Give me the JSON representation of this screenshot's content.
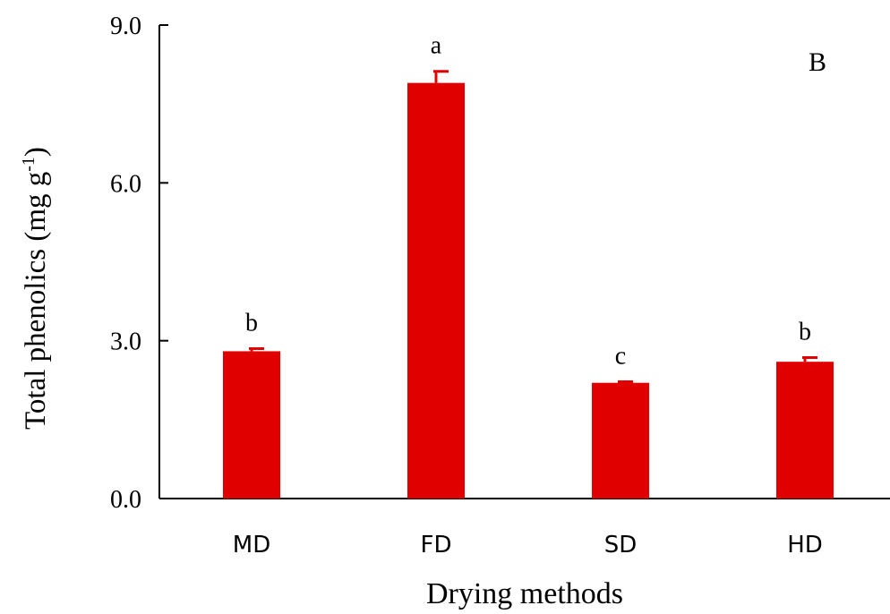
{
  "chart_data": {
    "type": "bar",
    "panel_label": "B",
    "categories": [
      "MD",
      "FD",
      "SD",
      "HD"
    ],
    "values": [
      2.8,
      7.9,
      2.2,
      2.6
    ],
    "errors": [
      0.05,
      0.22,
      0.02,
      0.08
    ],
    "significance": [
      "b",
      "a",
      "c",
      "b"
    ],
    "xlabel": "Drying methods",
    "ylabel": "Total phenolics (mg g",
    "ylabel_sup": "-1",
    "ylabel_close": ")",
    "ylim": [
      0,
      9
    ],
    "yticks": [
      0,
      3,
      6,
      9
    ],
    "ytick_labels": [
      "0.0",
      "3.0",
      "6.0",
      "9.0"
    ],
    "grid": false,
    "bar_color": "#e00000"
  }
}
